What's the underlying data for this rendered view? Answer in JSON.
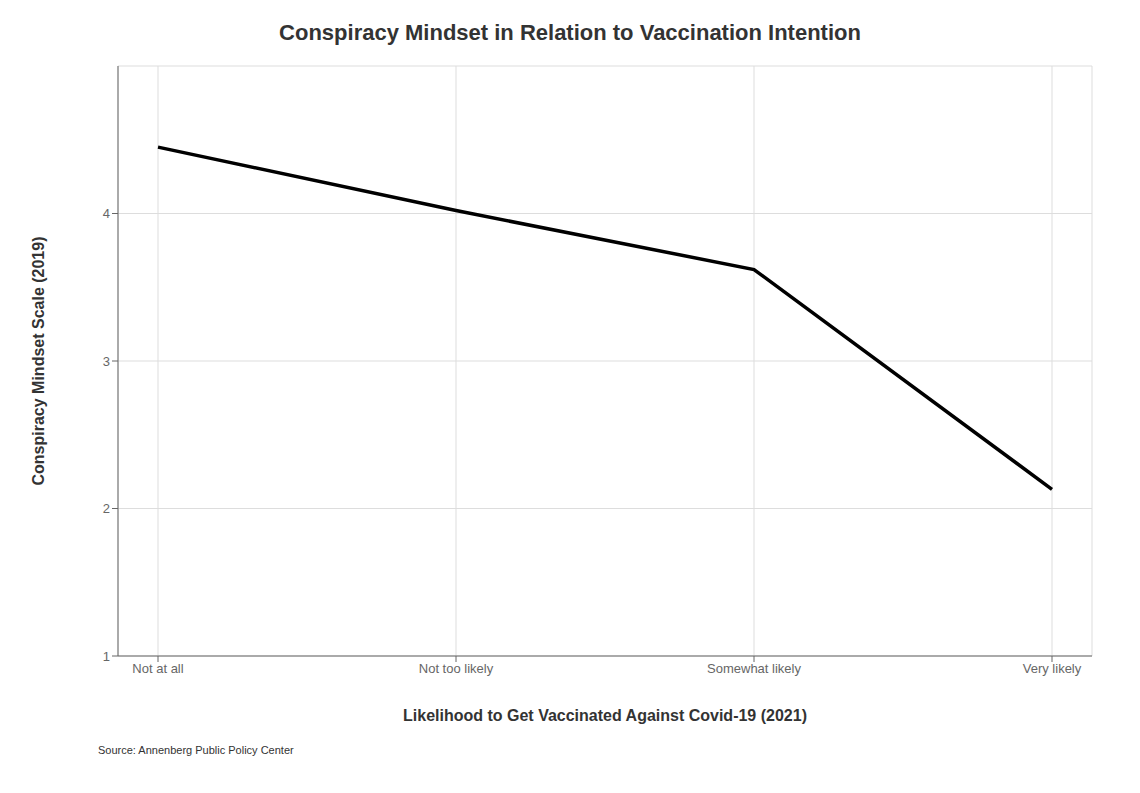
{
  "chart_data": {
    "type": "line",
    "title": "Conspiracy Mindset in Relation to Vaccination Intention",
    "x_label": "Likelihood to Get Vaccinated Against Covid-19 (2021)",
    "y_label": "Conspiracy Mindset Scale (2019)",
    "annotation": "Source: Annenberg Public Policy Center",
    "categories": [
      "Not at all",
      "Not too likely",
      "Somewhat likely",
      "Very likely"
    ],
    "values": [
      4.45,
      4.02,
      3.62,
      2.13
    ],
    "color": "#000000",
    "ylim": [
      1,
      5
    ],
    "yticks": [
      1,
      2,
      3,
      4
    ],
    "grid": true
  }
}
